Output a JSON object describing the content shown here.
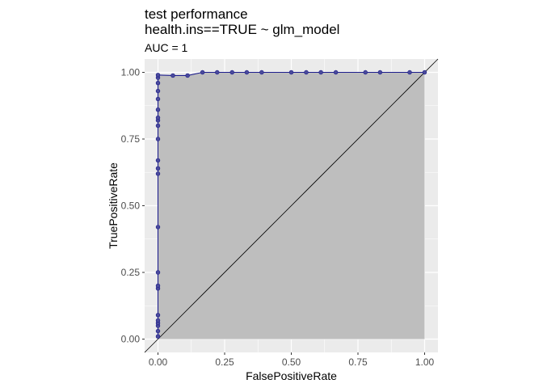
{
  "chart_data": {
    "type": "line",
    "title": "test performance",
    "subtitle_line2": "health.ins==TRUE ~ glm_model",
    "annotation": "AUC = 1",
    "xlabel": "FalsePositiveRate",
    "ylabel": "TruePositiveRate",
    "xlim": [
      -0.05,
      1.05
    ],
    "ylim": [
      -0.05,
      1.05
    ],
    "x_ticks": [
      0.0,
      0.25,
      0.5,
      0.75,
      1.0
    ],
    "x_tick_labels": [
      "0.00",
      "0.25",
      "0.50",
      "0.75",
      "1.00"
    ],
    "y_ticks": [
      0.0,
      0.25,
      0.5,
      0.75,
      1.0
    ],
    "y_tick_labels": [
      "0.00",
      "0.25",
      "0.50",
      "0.75",
      "1.00"
    ],
    "grid": true,
    "panel_background": "#ebebeb",
    "area_fill": "#bebebe",
    "line_color": "#1c1c8c",
    "point_color": "#4b4b9b",
    "diagonal_color": "#000000",
    "series": [
      {
        "points": [
          [
            0.0,
            0.01
          ],
          [
            0.0,
            0.03
          ],
          [
            0.0,
            0.05
          ],
          [
            0.0,
            0.06
          ],
          [
            0.0,
            0.07
          ],
          [
            0.0,
            0.09
          ],
          [
            0.0,
            0.19
          ],
          [
            0.0,
            0.2
          ],
          [
            0.0,
            0.25
          ],
          [
            0.0,
            0.42
          ],
          [
            0.0,
            0.62
          ],
          [
            0.0,
            0.64
          ],
          [
            0.0,
            0.67
          ],
          [
            0.0,
            0.75
          ],
          [
            0.0,
            0.8
          ],
          [
            0.0,
            0.82
          ],
          [
            0.0,
            0.83
          ],
          [
            0.0,
            0.86
          ],
          [
            0.0,
            0.9
          ],
          [
            0.0,
            0.93
          ],
          [
            0.0,
            0.96
          ],
          [
            0.0,
            0.98
          ],
          [
            0.0,
            0.99
          ],
          [
            0.056,
            0.988
          ],
          [
            0.111,
            0.988
          ],
          [
            0.167,
            1.0
          ],
          [
            0.222,
            1.0
          ],
          [
            0.278,
            1.0
          ],
          [
            0.333,
            1.0
          ],
          [
            0.389,
            1.0
          ],
          [
            0.5,
            1.0
          ],
          [
            0.556,
            1.0
          ],
          [
            0.611,
            1.0
          ],
          [
            0.667,
            1.0
          ],
          [
            0.778,
            1.0
          ],
          [
            0.833,
            1.0
          ],
          [
            0.944,
            1.0
          ],
          [
            1.0,
            1.0
          ]
        ]
      }
    ]
  }
}
